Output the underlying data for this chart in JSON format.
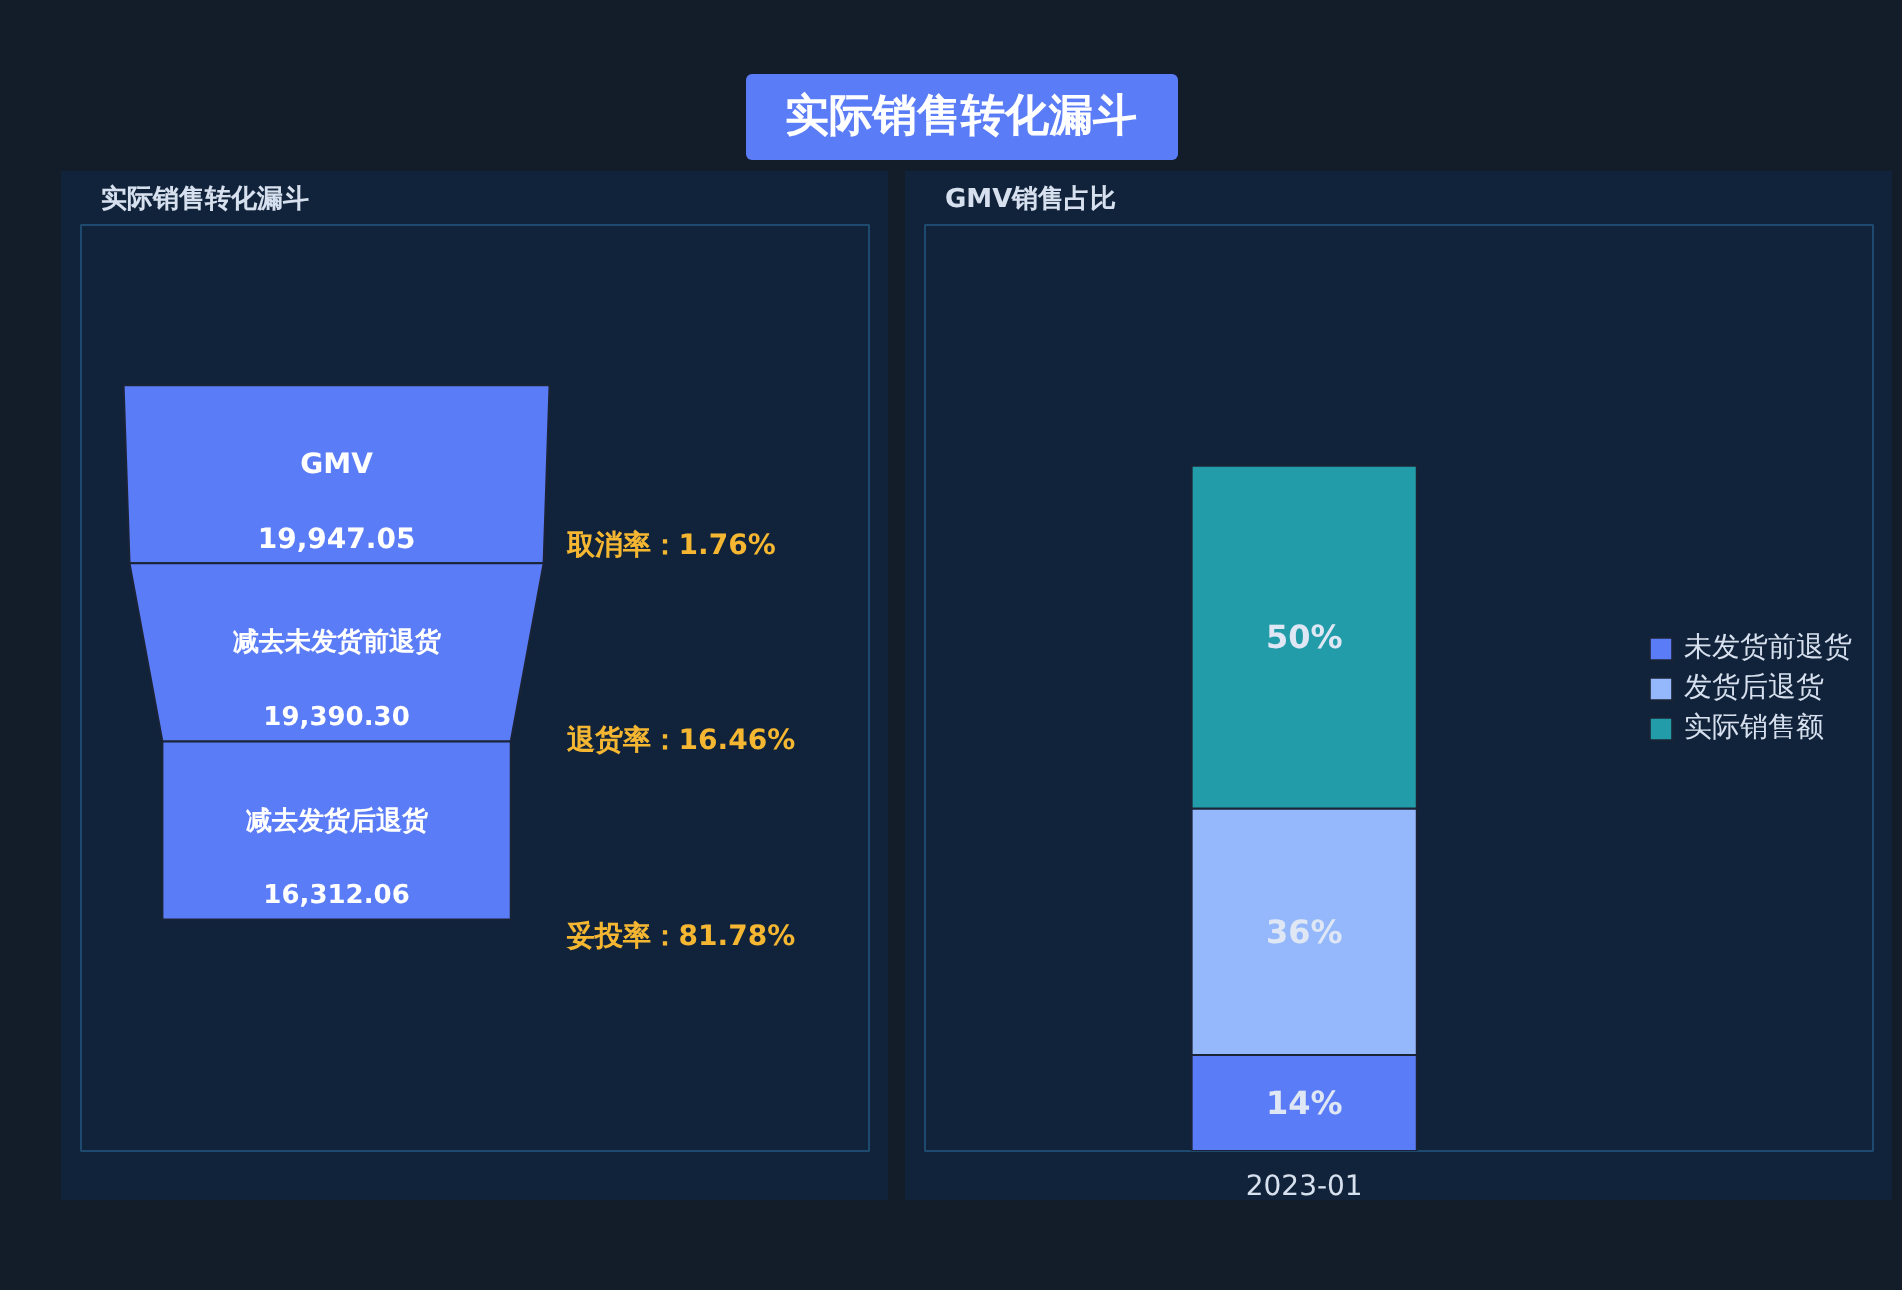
{
  "chart_data": [
    {
      "type": "other",
      "title": "实际销售转化漏斗",
      "subtitle": "实际销售转化漏斗",
      "categories": [
        "GMV",
        "减去未发货前退货",
        "减去发货后退货"
      ],
      "values": [
        19947.05,
        19390.3,
        16312.06
      ],
      "value_labels": [
        "19,947.05",
        "19,390.30",
        "16,312.06"
      ],
      "color": "#5b7cf7",
      "annotations": [
        "取消率：1.76%",
        "退货率：16.46%",
        "妥投率：81.78%"
      ]
    },
    {
      "type": "bar",
      "title": "GMV销售占比",
      "categories": [
        "2023-01"
      ],
      "stacked": true,
      "legend": "right",
      "tick_labels": "x",
      "grid": false,
      "series": [
        {
          "name": "未发货前退货",
          "color": "#5b7cf7",
          "values": [
            14
          ],
          "value_labels": [
            "14%"
          ]
        },
        {
          "name": "发货后退货",
          "color": "#94b8fb",
          "values": [
            36
          ],
          "value_labels": [
            "36%"
          ]
        },
        {
          "name": "实际销售额",
          "color": "#219ca8",
          "values": [
            50
          ],
          "value_labels": [
            "50%"
          ]
        }
      ]
    }
  ]
}
